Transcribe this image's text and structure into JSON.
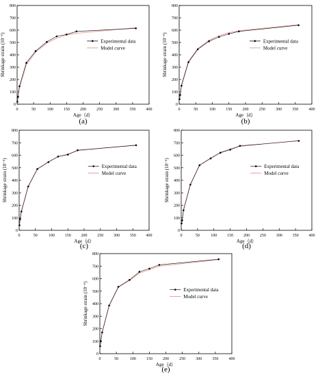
{
  "colors": {
    "experimental": "#000000",
    "model": "#e8a0a0",
    "axis": "#000000"
  },
  "chart_data": [
    {
      "type": "line",
      "panel_label": "(a)",
      "xlabel": "Age（d）",
      "ylabel": "Shrinkage strain (10⁻⁶)",
      "xlim": [
        0,
        400
      ],
      "ylim": [
        0,
        800
      ],
      "xticks": [
        0,
        50,
        100,
        150,
        200,
        250,
        300,
        350,
        400
      ],
      "yticks": [
        0,
        100,
        200,
        300,
        400,
        500,
        600,
        700,
        800
      ],
      "legend": "center-right",
      "series": [
        {
          "name": "Experimental data",
          "x": [
            1,
            3,
            7,
            28,
            56,
            90,
            120,
            150,
            180,
            360
          ],
          "y": [
            20,
            60,
            145,
            335,
            430,
            505,
            550,
            565,
            590,
            615
          ]
        },
        {
          "name": "Model curve",
          "x": [
            1,
            3,
            7,
            28,
            56,
            90,
            120,
            150,
            180,
            360
          ],
          "y": [
            25,
            75,
            130,
            320,
            420,
            495,
            535,
            560,
            575,
            620
          ]
        }
      ]
    },
    {
      "type": "line",
      "panel_label": "(b)",
      "xlabel": "Age（d）",
      "ylabel": "Shrinkage strain (10⁻⁶)",
      "xlim": [
        0,
        400
      ],
      "ylim": [
        0,
        800
      ],
      "xticks": [
        0,
        50,
        100,
        150,
        200,
        250,
        300,
        350,
        400
      ],
      "yticks": [
        0,
        100,
        200,
        300,
        400,
        500,
        600,
        700,
        800
      ],
      "legend": "center-right",
      "series": [
        {
          "name": "Experimental data",
          "x": [
            1,
            3,
            7,
            28,
            56,
            90,
            120,
            150,
            180,
            360
          ],
          "y": [
            40,
            75,
            150,
            340,
            445,
            510,
            545,
            570,
            590,
            640
          ]
        },
        {
          "name": "Model curve",
          "x": [
            1,
            3,
            7,
            28,
            56,
            90,
            120,
            150,
            180,
            360
          ],
          "y": [
            45,
            85,
            160,
            350,
            450,
            520,
            555,
            580,
            595,
            645
          ]
        }
      ]
    },
    {
      "type": "line",
      "panel_label": "(c)",
      "xlabel": "Age（d）",
      "ylabel": "Shrinkage strain (10⁻⁶)",
      "xlim": [
        0,
        400
      ],
      "ylim": [
        0,
        800
      ],
      "xticks": [
        0,
        50,
        100,
        150,
        200,
        250,
        300,
        350,
        400
      ],
      "yticks": [
        0,
        100,
        200,
        300,
        400,
        500,
        600,
        700,
        800
      ],
      "legend": "center-right",
      "series": [
        {
          "name": "Experimental data",
          "x": [
            1,
            3,
            7,
            28,
            56,
            90,
            120,
            150,
            180,
            360
          ],
          "y": [
            40,
            90,
            150,
            350,
            490,
            545,
            590,
            605,
            640,
            680
          ]
        },
        {
          "name": "Model curve",
          "x": [
            1,
            3,
            7,
            28,
            56,
            90,
            120,
            150,
            180,
            360
          ],
          "y": [
            45,
            95,
            155,
            355,
            490,
            548,
            588,
            610,
            638,
            682
          ]
        }
      ]
    },
    {
      "type": "line",
      "panel_label": "(d)",
      "xlabel": "Age（d）",
      "ylabel": "Shrinkage strain (10⁻⁶)",
      "xlim": [
        0,
        400
      ],
      "ylim": [
        0,
        800
      ],
      "xticks": [
        0,
        50,
        100,
        150,
        200,
        250,
        300,
        350,
        400
      ],
      "yticks": [
        0,
        100,
        200,
        300,
        400,
        500,
        600,
        700,
        800
      ],
      "legend": "center-right",
      "series": [
        {
          "name": "Experimental data",
          "x": [
            1,
            3,
            7,
            28,
            56,
            90,
            120,
            150,
            180,
            360
          ],
          "y": [
            55,
            80,
            160,
            365,
            520,
            575,
            620,
            645,
            675,
            715
          ]
        },
        {
          "name": "Model curve",
          "x": [
            1,
            3,
            7,
            28,
            56,
            90,
            120,
            150,
            180,
            360
          ],
          "y": [
            60,
            85,
            165,
            370,
            520,
            578,
            622,
            650,
            672,
            718
          ]
        }
      ]
    },
    {
      "type": "line",
      "panel_label": "(e)",
      "xlabel": "Age（d）",
      "ylabel": "Shrinkage strain (10⁻⁶)",
      "xlim": [
        0,
        400
      ],
      "ylim": [
        0,
        800
      ],
      "xticks": [
        0,
        50,
        100,
        150,
        200,
        250,
        300,
        350,
        400
      ],
      "yticks": [
        0,
        100,
        200,
        300,
        400,
        500,
        600,
        700,
        800
      ],
      "legend": "center-right",
      "series": [
        {
          "name": "Experimental data",
          "x": [
            1,
            3,
            7,
            28,
            56,
            90,
            120,
            150,
            180,
            360
          ],
          "y": [
            60,
            100,
            170,
            385,
            535,
            590,
            655,
            680,
            710,
            755
          ]
        },
        {
          "name": "Model curve",
          "x": [
            1,
            3,
            7,
            28,
            56,
            90,
            120,
            150,
            180,
            360
          ],
          "y": [
            65,
            110,
            175,
            380,
            530,
            585,
            645,
            670,
            700,
            752
          ]
        }
      ]
    }
  ]
}
